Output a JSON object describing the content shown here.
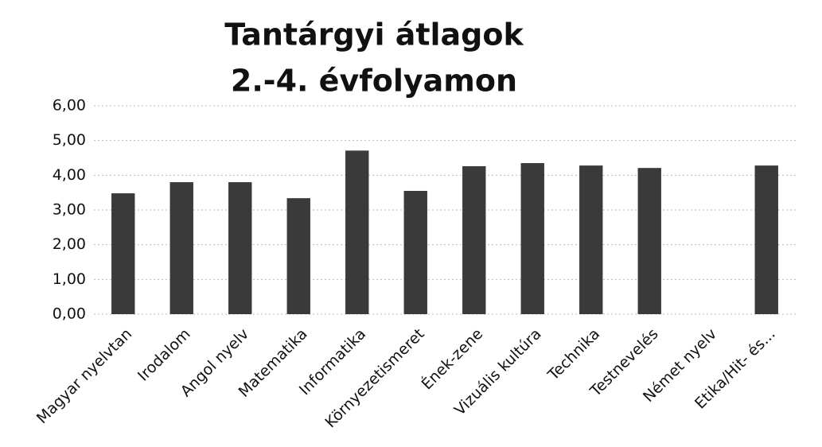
{
  "chart_data": {
    "type": "bar",
    "title": [
      "Tantárgyi átlagok",
      "2.-4. évfolyamon"
    ],
    "categories": [
      "Magyar nyelvtan",
      "Irodalom",
      "Angol nyelv",
      "Matematika",
      "Informatika",
      "Környezetismeret",
      "Ének-zene",
      "Vizuális kultúra",
      "Technika",
      "Testnevelés",
      "Német nyelv",
      "Etika/Hit- és..."
    ],
    "values": [
      3.48,
      3.8,
      3.8,
      3.34,
      4.71,
      3.55,
      4.26,
      4.35,
      4.28,
      4.21,
      null,
      4.28
    ],
    "color": "#3a3a3a",
    "ylim": [
      0,
      6
    ],
    "yticks": [
      {
        "value": 0,
        "label": "0,00"
      },
      {
        "value": 1,
        "label": "1,00"
      },
      {
        "value": 2,
        "label": "2,00"
      },
      {
        "value": 3,
        "label": "3,00"
      },
      {
        "value": 4,
        "label": "4,00"
      },
      {
        "value": 5,
        "label": "5,00"
      },
      {
        "value": 6,
        "label": "6,00"
      }
    ],
    "grid": true
  }
}
